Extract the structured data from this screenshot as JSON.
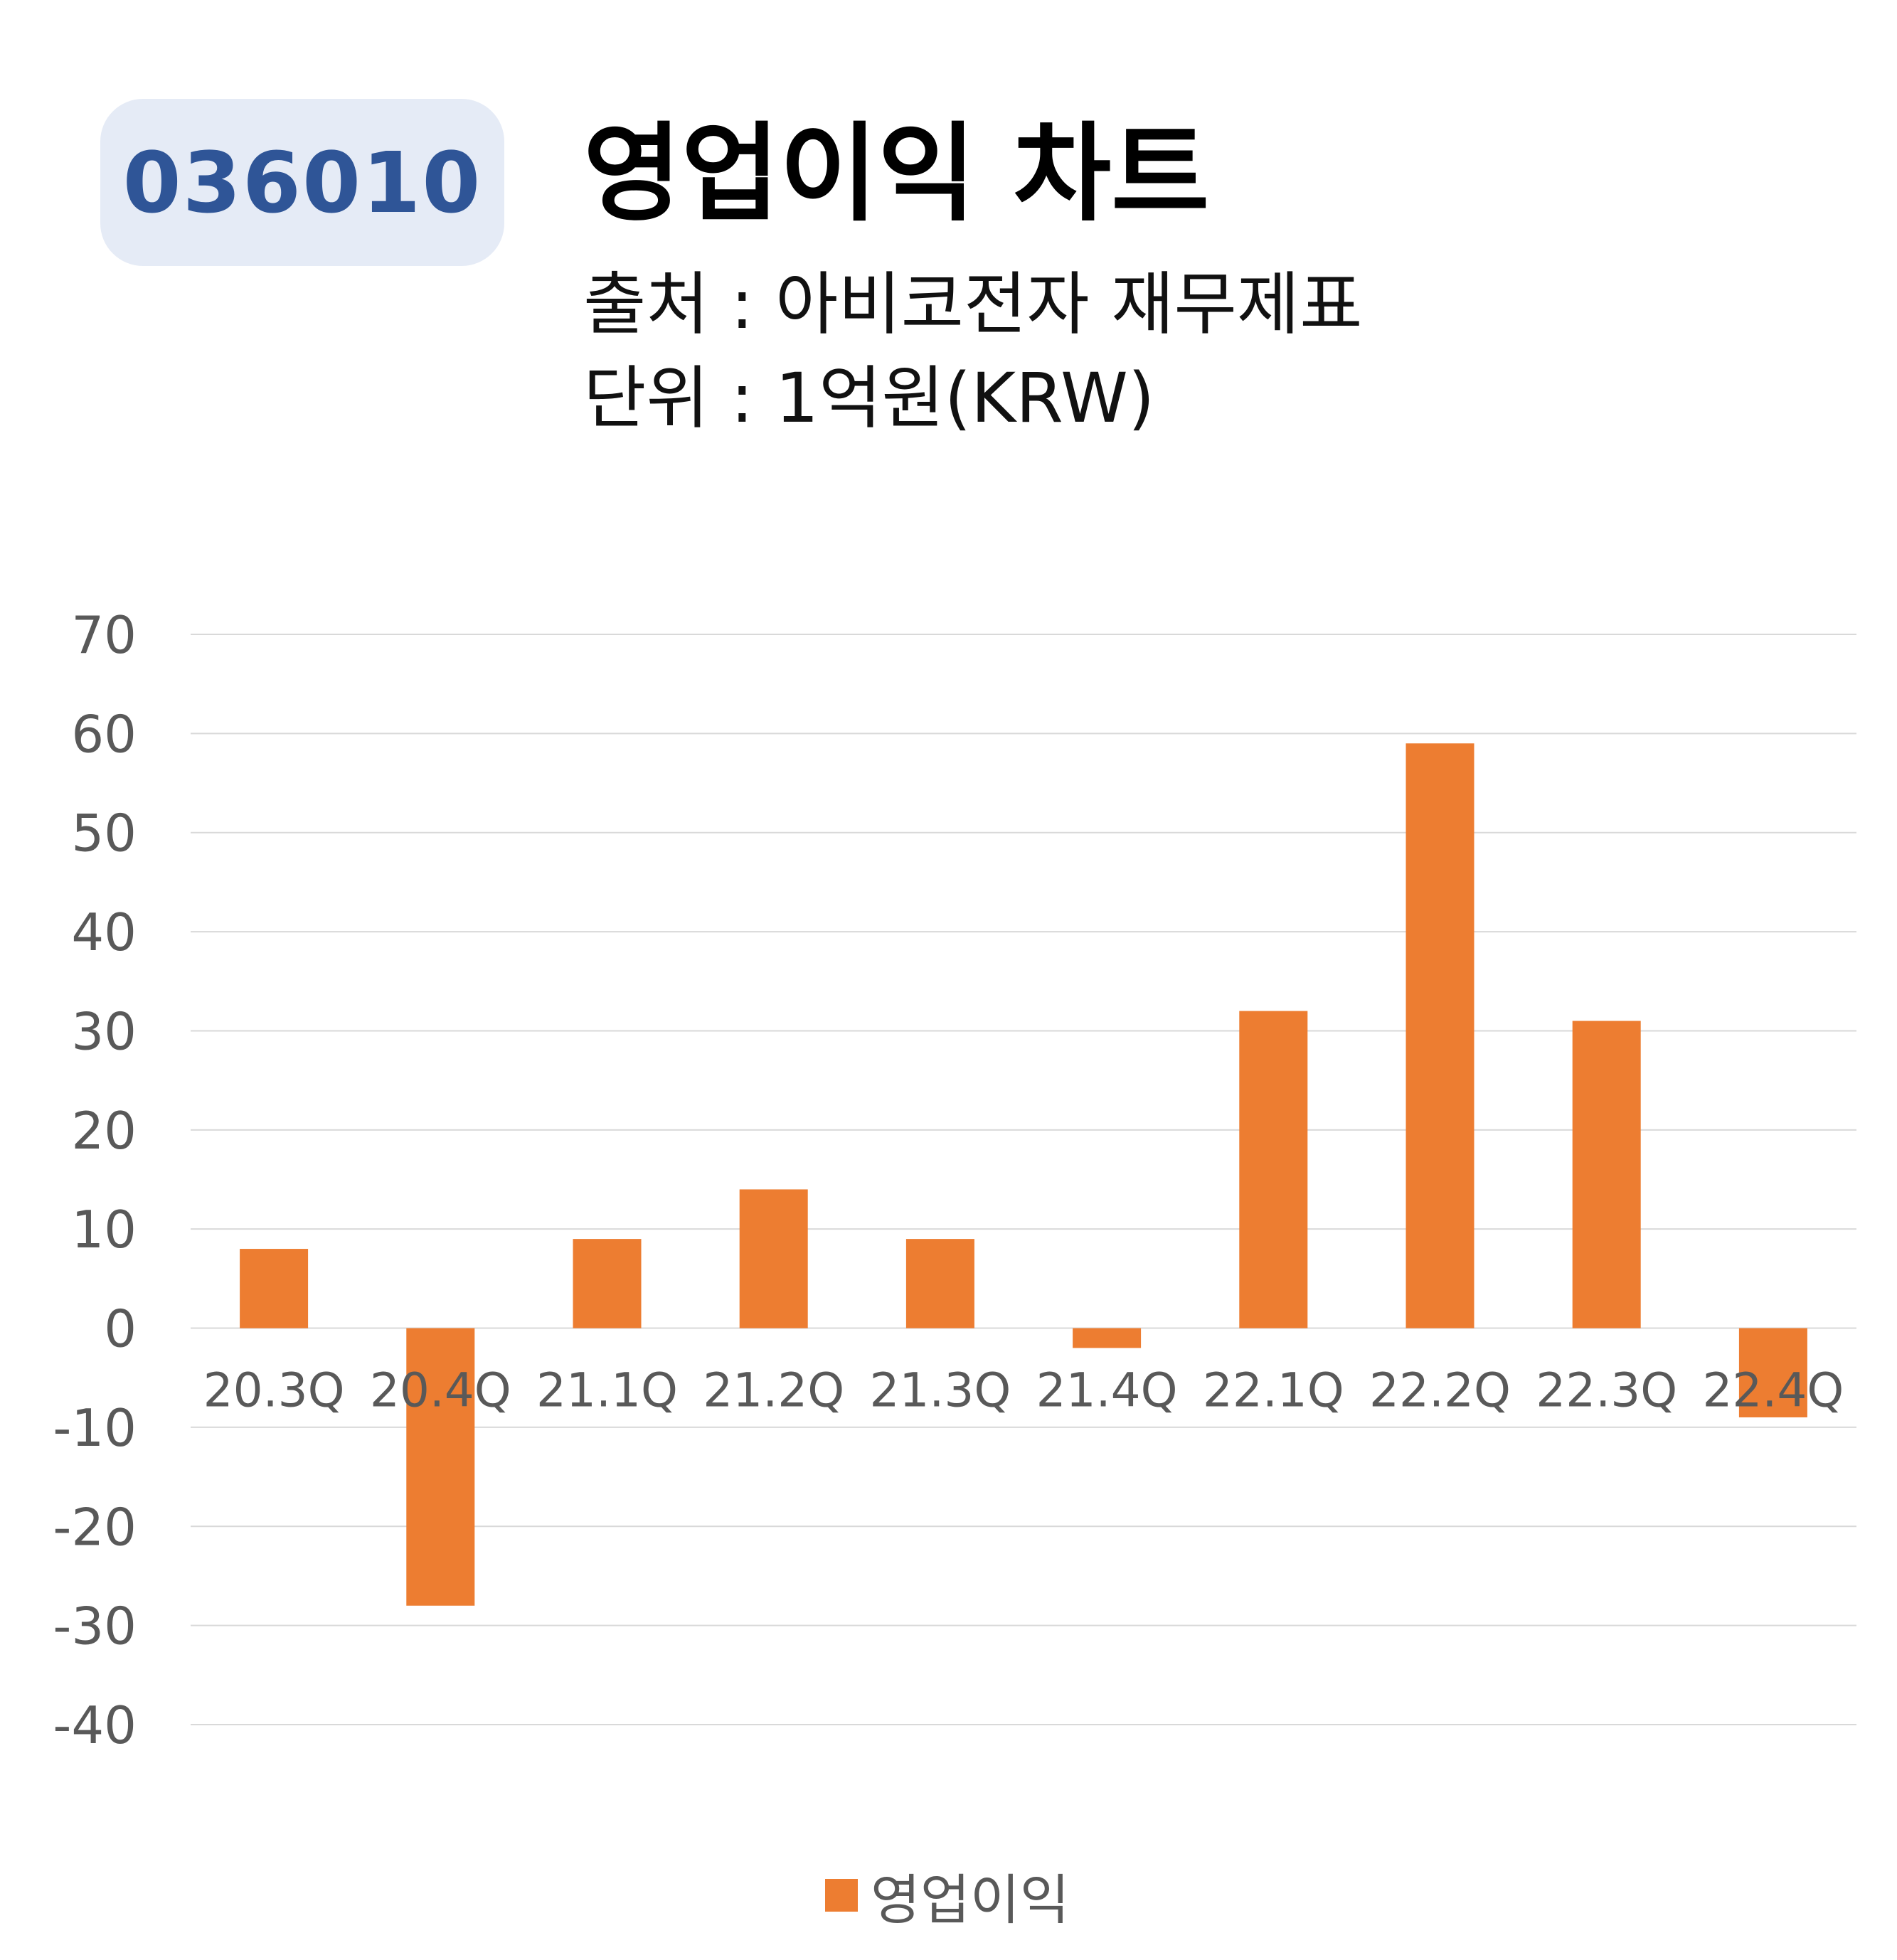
{
  "header": {
    "code": "036010",
    "title": "영업이익 차트",
    "source": "출처 : 아비코전자 재무제표",
    "unit": "단위 : 1억원(KRW)"
  },
  "chart_data": {
    "type": "bar",
    "title": "영업이익 차트",
    "categories": [
      "20.3Q",
      "20.4Q",
      "21.1Q",
      "21.2Q",
      "21.3Q",
      "21.4Q",
      "22.1Q",
      "22.2Q",
      "22.3Q",
      "22.4Q"
    ],
    "series": [
      {
        "name": "영업이익",
        "color": "#ed7d31",
        "values": [
          8,
          -28,
          9,
          14,
          9,
          -2,
          32,
          59,
          31,
          -9
        ]
      }
    ],
    "yticks": [
      "70",
      "60",
      "50",
      "40",
      "30",
      "20",
      "10",
      "0",
      "-10",
      "-20",
      "-30",
      "-40"
    ],
    "ylim": [
      -40,
      70
    ],
    "ytick_step": 10,
    "grid": true,
    "legend_position": "bottom",
    "xlabel": "",
    "ylabel": ""
  }
}
